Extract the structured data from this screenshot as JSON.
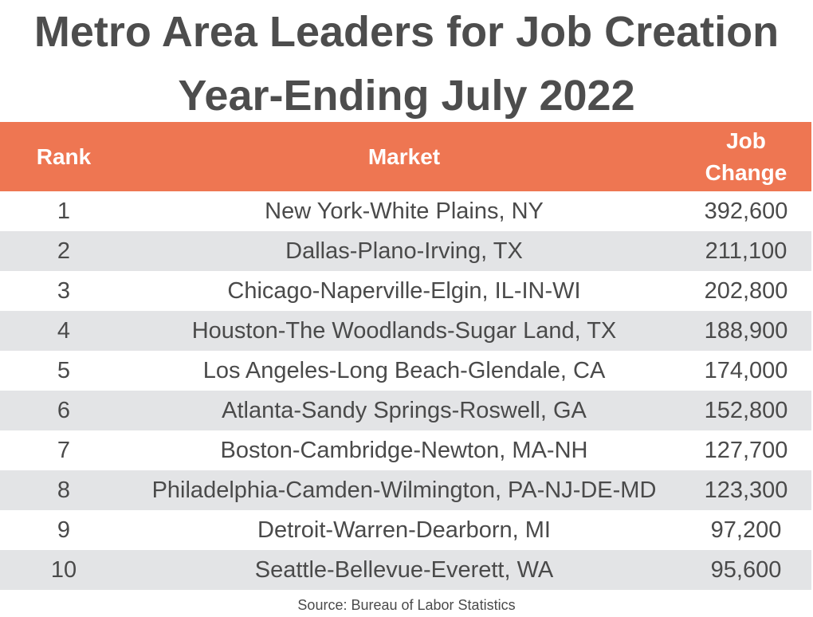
{
  "title_line1": "Metro Area Leaders for Job Creation",
  "title_line2": "Year-Ending July 2022",
  "colors": {
    "header_bg": "#ee7652",
    "header_text": "#ffffff",
    "alt_row_bg": "#e3e4e6",
    "text": "#4a4a4a"
  },
  "chart_data": {
    "type": "table",
    "columns": [
      "Rank",
      "Market",
      "Job Change"
    ],
    "rows": [
      {
        "rank": "1",
        "market": "New York-White Plains, NY",
        "job_change": "392,600"
      },
      {
        "rank": "2",
        "market": "Dallas-Plano-Irving, TX",
        "job_change": "211,100"
      },
      {
        "rank": "3",
        "market": "Chicago-Naperville-Elgin, IL-IN-WI",
        "job_change": "202,800"
      },
      {
        "rank": "4",
        "market": "Houston-The Woodlands-Sugar Land, TX",
        "job_change": "188,900"
      },
      {
        "rank": "5",
        "market": "Los Angeles-Long Beach-Glendale, CA",
        "job_change": "174,000"
      },
      {
        "rank": "6",
        "market": "Atlanta-Sandy Springs-Roswell, GA",
        "job_change": "152,800"
      },
      {
        "rank": "7",
        "market": "Boston-Cambridge-Newton, MA-NH",
        "job_change": "127,700"
      },
      {
        "rank": "8",
        "market": "Philadelphia-Camden-Wilmington, PA-NJ-DE-MD",
        "job_change": "123,300"
      },
      {
        "rank": "9",
        "market": "Detroit-Warren-Dearborn, MI",
        "job_change": "97,200"
      },
      {
        "rank": "10",
        "market": "Seattle-Bellevue-Everett, WA",
        "job_change": "95,600"
      }
    ]
  },
  "source": "Source: Bureau of Labor Statistics"
}
